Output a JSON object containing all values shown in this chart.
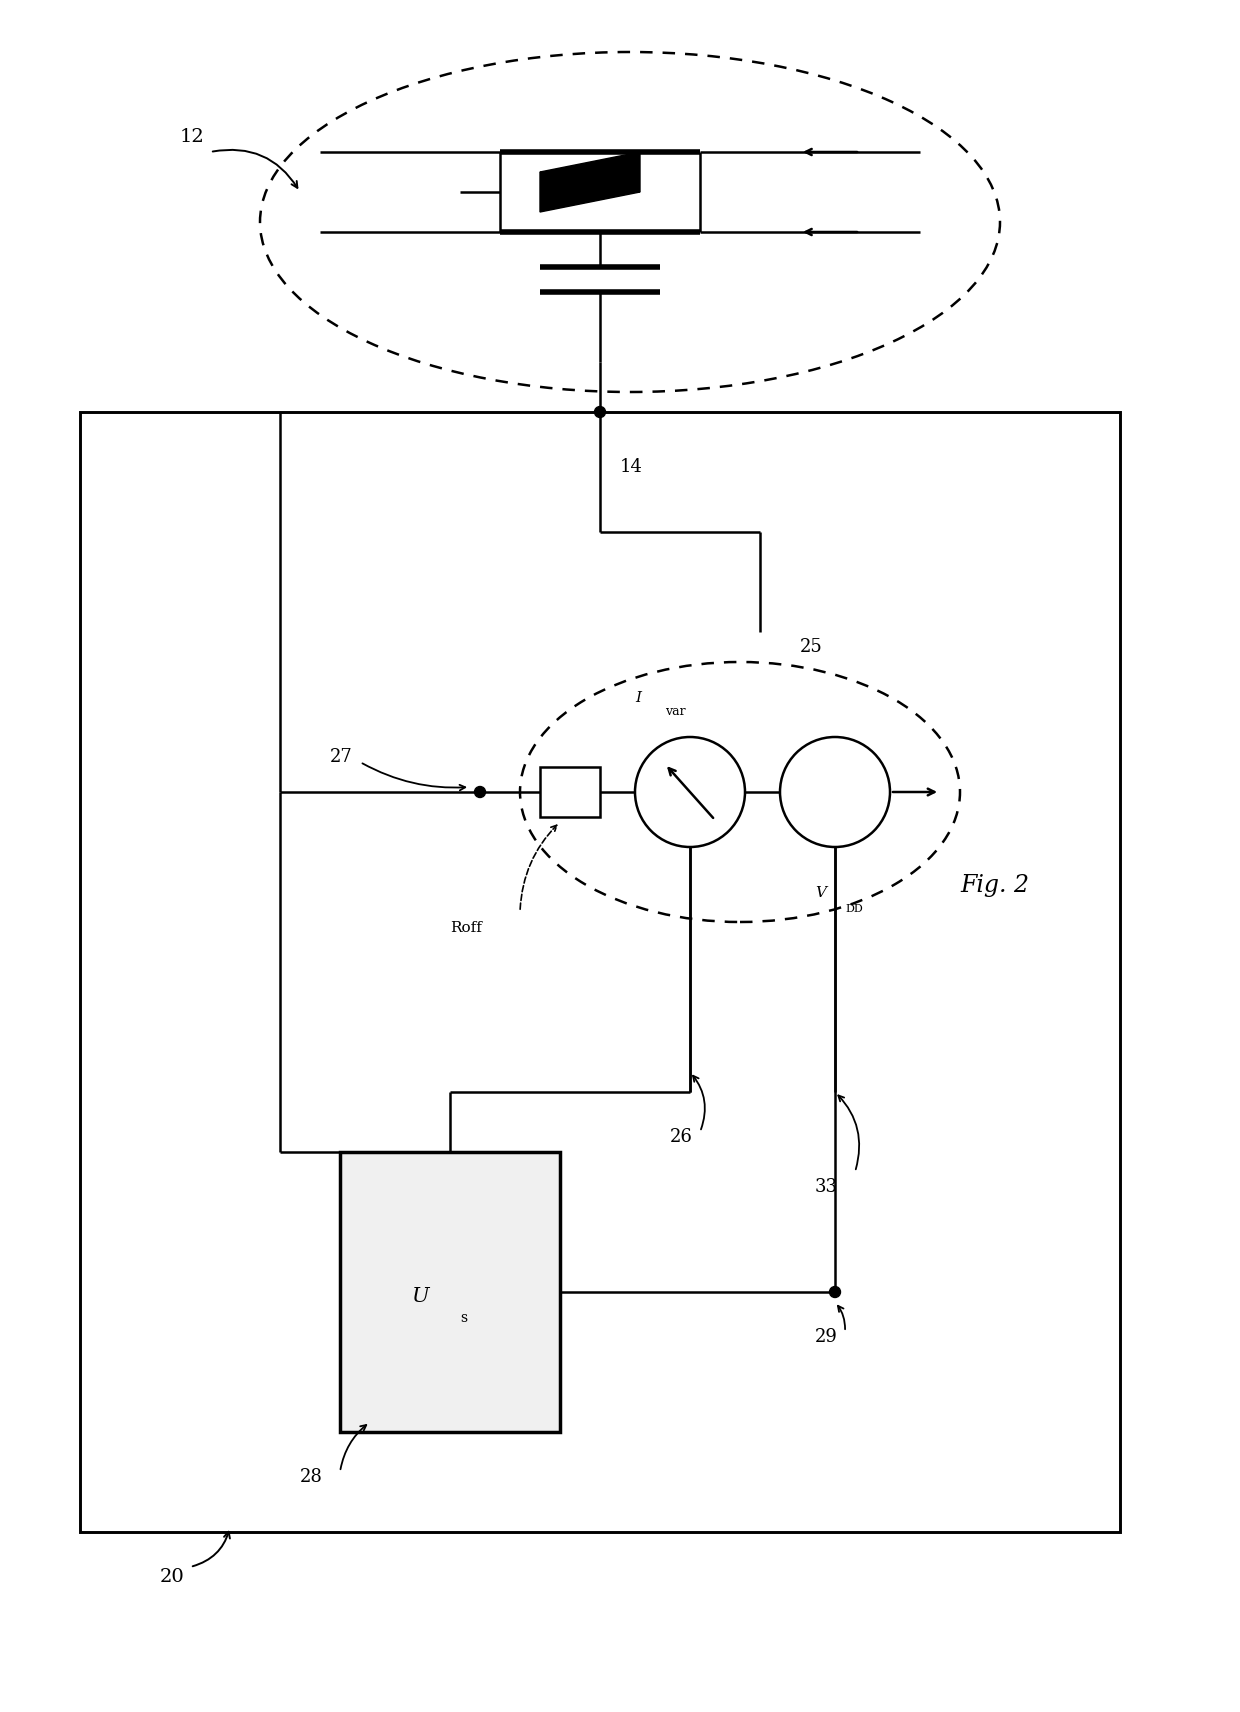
{
  "background_color": "#ffffff",
  "fig_width": 12.4,
  "fig_height": 17.12,
  "dpi": 100,
  "label_12": "12",
  "label_14": "14",
  "label_20": "20",
  "label_25": "25",
  "label_26": "26",
  "label_27": "27",
  "label_28": "28",
  "label_29": "29",
  "label_33": "33",
  "label_Roff": "Roff",
  "label_Ivar": "I",
  "label_Ivar_sub": "var",
  "label_Us": "U",
  "label_Us_sub": "s",
  "label_Vdd": "V",
  "label_Vdd_sub": "DD",
  "label_fig": "Fig. 2",
  "line_color": "#000000"
}
